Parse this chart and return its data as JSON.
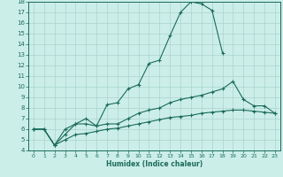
{
  "bg_color": "#cceee8",
  "grid_color": "#aad4ce",
  "line_color": "#1a6b5a",
  "x_label": "Humidex (Indice chaleur)",
  "xlim": [
    -0.5,
    23.5
  ],
  "ylim": [
    4,
    18
  ],
  "xticks": [
    0,
    1,
    2,
    3,
    4,
    5,
    6,
    7,
    8,
    9,
    10,
    11,
    12,
    13,
    14,
    15,
    16,
    17,
    18,
    19,
    20,
    21,
    22,
    23
  ],
  "yticks": [
    4,
    5,
    6,
    7,
    8,
    9,
    10,
    11,
    12,
    13,
    14,
    15,
    16,
    17,
    18
  ],
  "series": [
    {
      "x": [
        0,
        1,
        2,
        3,
        4,
        5,
        6,
        7,
        8,
        9,
        10,
        11,
        12,
        13,
        14,
        15,
        16,
        17,
        18
      ],
      "y": [
        6.0,
        6.0,
        4.5,
        6.0,
        6.5,
        7.0,
        6.3,
        8.3,
        8.5,
        9.8,
        10.2,
        12.2,
        12.5,
        14.8,
        17.0,
        18.0,
        17.8,
        17.2,
        13.2
      ]
    },
    {
      "x": [
        0,
        1,
        2,
        3,
        4,
        5,
        6,
        7,
        8,
        9,
        10,
        11,
        12,
        13,
        14,
        15,
        16,
        17,
        18,
        19,
        20,
        21,
        22,
        23
      ],
      "y": [
        6.0,
        6.0,
        4.5,
        5.5,
        6.5,
        6.5,
        6.3,
        6.5,
        6.5,
        7.0,
        7.5,
        7.8,
        8.0,
        8.5,
        8.8,
        9.0,
        9.2,
        9.5,
        9.8,
        10.5,
        8.8,
        8.2,
        8.2,
        7.5
      ]
    },
    {
      "x": [
        0,
        1,
        2,
        3,
        4,
        5,
        6,
        7,
        8,
        9,
        10,
        11,
        12,
        13,
        14,
        15,
        16,
        17,
        18,
        19,
        20,
        21,
        22,
        23
      ],
      "y": [
        6.0,
        6.0,
        4.5,
        5.0,
        5.5,
        5.6,
        5.8,
        6.0,
        6.1,
        6.3,
        6.5,
        6.7,
        6.9,
        7.1,
        7.2,
        7.3,
        7.5,
        7.6,
        7.7,
        7.8,
        7.8,
        7.7,
        7.6,
        7.5
      ]
    }
  ]
}
